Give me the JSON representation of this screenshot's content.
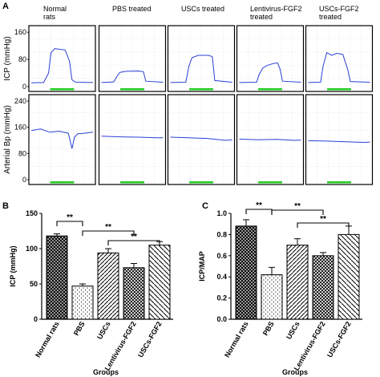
{
  "panel_letters": {
    "a": "A",
    "b": "B",
    "c": "C"
  },
  "colors": {
    "trace": "#2b3fd6",
    "marker": "#22cc22",
    "grid": "#cfd6e6",
    "frame": "#000000"
  },
  "chart_data": [
    {
      "id": "A",
      "type": "line",
      "group_labels": [
        [
          "Normal",
          "rats"
        ],
        [
          "PBS treated"
        ],
        [
          "USCs treated"
        ],
        [
          "Lentivirus-FGF2",
          "treated"
        ],
        [
          "USCs-FGF2",
          "treated"
        ]
      ],
      "rows": [
        {
          "ylabel": "ICP (mmHg)",
          "ylim": [
            0,
            170
          ],
          "ticks": [
            0,
            80,
            160
          ],
          "traces": [
            {
              "x": [
                0,
                20,
                28,
                32,
                38,
                55,
                62,
                66,
                72,
                100
              ],
              "y": [
                11,
                12,
                40,
                100,
                112,
                108,
                75,
                20,
                13,
                12
              ]
            },
            {
              "x": [
                0,
                20,
                25,
                30,
                40,
                60,
                68,
                72,
                100
              ],
              "y": [
                12,
                14,
                30,
                42,
                45,
                46,
                44,
                16,
                13
              ]
            },
            {
              "x": [
                0,
                25,
                30,
                35,
                45,
                62,
                68,
                72,
                100
              ],
              "y": [
                12,
                13,
                60,
                85,
                92,
                92,
                88,
                18,
                13
              ]
            },
            {
              "x": [
                0,
                28,
                32,
                38,
                45,
                55,
                62,
                66,
                70,
                100
              ],
              "y": [
                12,
                13,
                35,
                55,
                62,
                68,
                70,
                52,
                16,
                13
              ]
            },
            {
              "x": [
                0,
                20,
                24,
                30,
                38,
                46,
                56,
                64,
                68,
                100
              ],
              "y": [
                12,
                13,
                60,
                100,
                92,
                98,
                95,
                50,
                15,
                13
              ]
            }
          ]
        },
        {
          "ylabel": "Arterial Bp (mmHg)",
          "ylim": [
            0,
            250
          ],
          "ticks": [
            0,
            80,
            160,
            240
          ],
          "traces": [
            {
              "x": [
                0,
                15,
                30,
                45,
                60,
                66,
                70,
                75,
                85,
                100
              ],
              "y": [
                150,
                155,
                145,
                148,
                142,
                95,
                130,
                140,
                142,
                145
              ]
            },
            {
              "x": [
                0,
                30,
                60,
                90,
                100
              ],
              "y": [
                133,
                131,
                130,
                128,
                128
              ]
            },
            {
              "x": [
                0,
                30,
                60,
                90,
                100
              ],
              "y": [
                130,
                128,
                126,
                120,
                122
              ]
            },
            {
              "x": [
                0,
                30,
                60,
                90,
                100
              ],
              "y": [
                124,
                122,
                123,
                120,
                121
              ]
            },
            {
              "x": [
                0,
                30,
                60,
                90,
                100
              ],
              "y": [
                119,
                118,
                116,
                114,
                115
              ]
            }
          ]
        }
      ]
    },
    {
      "id": "B",
      "type": "bar",
      "categories": [
        "Normal rats",
        "PBS",
        "USCs",
        "Lentivirus-FGF2",
        "USCs-FGF2"
      ],
      "values": [
        118,
        47,
        94,
        73,
        105
      ],
      "errors": [
        3,
        3,
        6,
        6,
        5
      ],
      "ylabel": "ICP (mmHg)",
      "xlabel": "Groups",
      "ylim": [
        0,
        150
      ],
      "ticks": [
        0,
        50,
        100,
        150
      ],
      "significance": [
        {
          "from": 0,
          "to": 1,
          "label": "**"
        },
        {
          "from": 1,
          "to": 3,
          "label": "**"
        },
        {
          "from": 2,
          "to": 4,
          "label": "**"
        }
      ]
    },
    {
      "id": "C",
      "type": "bar",
      "categories": [
        "Normal rats",
        "PBS",
        "USCs",
        "Lentivirus-FGF2",
        "USCs-FGF2"
      ],
      "values": [
        0.88,
        0.42,
        0.7,
        0.6,
        0.8
      ],
      "errors": [
        0.06,
        0.07,
        0.06,
        0.03,
        0.08
      ],
      "ylabel": "ICP/MAP",
      "xlabel": "Groups",
      "ylim": [
        0,
        1.0
      ],
      "ticks": [
        "0.0",
        "0.2",
        "0.4",
        "0.6",
        "0.8",
        "1.0"
      ],
      "significance": [
        {
          "from": 0,
          "to": 1,
          "label": "**"
        },
        {
          "from": 1,
          "to": 3,
          "label": "**"
        },
        {
          "from": 2,
          "to": 4,
          "label": "**"
        }
      ]
    }
  ]
}
